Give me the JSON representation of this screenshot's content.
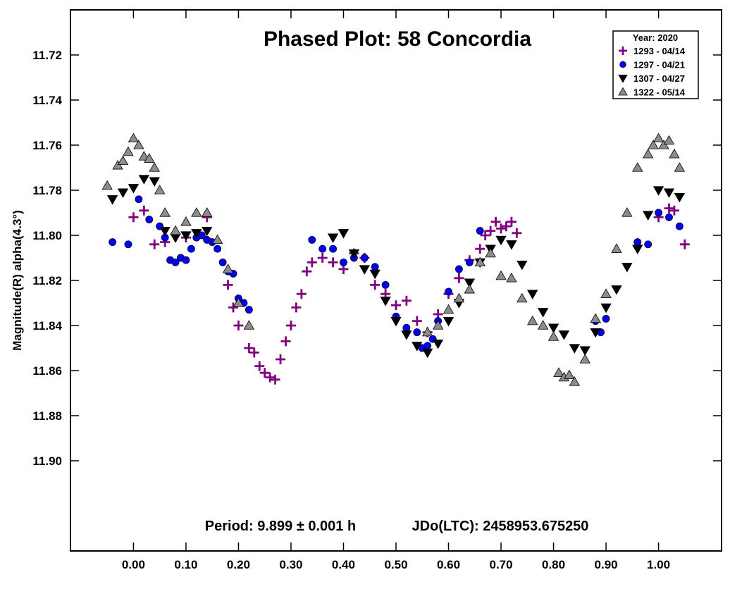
{
  "chart_data": {
    "type": "scatter",
    "title": "Phased Plot: 58 Concordia",
    "ylabel": "Magnitude(R) alpha(4.3°)",
    "xlabel": "",
    "xlim": [
      -0.12,
      1.12
    ],
    "ylim": [
      11.7,
      11.94
    ],
    "y_inverted": true,
    "x_ticks": [
      0.0,
      0.1,
      0.2,
      0.3,
      0.4,
      0.5,
      0.6,
      0.7,
      0.8,
      0.9,
      1.0
    ],
    "x_tick_labels": [
      "0.00",
      "0.10",
      "0.20",
      "0.30",
      "0.40",
      "0.50",
      "0.60",
      "0.70",
      "0.80",
      "0.90",
      "1.00"
    ],
    "y_ticks": [
      11.72,
      11.74,
      11.76,
      11.78,
      11.8,
      11.82,
      11.84,
      11.86,
      11.88,
      11.9
    ],
    "y_tick_labels": [
      "11.72",
      "11.74",
      "11.76",
      "11.78",
      "11.80",
      "11.82",
      "11.84",
      "11.86",
      "11.88",
      "11.90"
    ],
    "legend": {
      "title": "Year: 2020",
      "placement": "top-right"
    },
    "annotations": {
      "period": "Period: 9.899 ± 0.001 h",
      "jdo": "JDo(LTC): 2458953.675250"
    },
    "series": [
      {
        "name": "1293 - 04/14",
        "marker": "plus",
        "color": "#800080",
        "x": [
          0.0,
          0.02,
          0.04,
          0.06,
          0.1,
          0.14,
          0.18,
          0.19,
          0.2,
          0.22,
          0.23,
          0.24,
          0.25,
          0.26,
          0.27,
          0.28,
          0.29,
          0.3,
          0.31,
          0.32,
          0.33,
          0.34,
          0.36,
          0.38,
          0.4,
          0.42,
          0.44,
          0.46,
          0.48,
          0.5,
          0.52,
          0.54,
          0.56,
          0.58,
          0.6,
          0.62,
          0.64,
          0.66,
          0.67,
          0.68,
          0.69,
          0.7,
          0.71,
          0.72,
          0.73,
          1.0,
          1.02,
          1.03,
          1.05
        ],
        "y": [
          11.792,
          11.789,
          11.804,
          11.803,
          11.801,
          11.792,
          11.822,
          11.832,
          11.84,
          11.85,
          11.852,
          11.858,
          11.861,
          11.863,
          11.864,
          11.855,
          11.847,
          11.84,
          11.832,
          11.826,
          11.816,
          11.812,
          11.81,
          11.812,
          11.815,
          11.808,
          11.81,
          11.822,
          11.826,
          11.831,
          11.829,
          11.838,
          11.843,
          11.835,
          11.826,
          11.819,
          11.811,
          11.806,
          11.8,
          11.798,
          11.794,
          11.797,
          11.796,
          11.794,
          11.799,
          11.792,
          11.788,
          11.789,
          11.804
        ]
      },
      {
        "name": "1297 - 04/21",
        "marker": "circle",
        "color": "#0000ee",
        "x": [
          -0.04,
          -0.01,
          0.01,
          0.03,
          0.05,
          0.06,
          0.07,
          0.08,
          0.09,
          0.1,
          0.11,
          0.12,
          0.13,
          0.14,
          0.15,
          0.16,
          0.17,
          0.18,
          0.19,
          0.2,
          0.21,
          0.22,
          0.34,
          0.36,
          0.38,
          0.4,
          0.42,
          0.44,
          0.46,
          0.48,
          0.5,
          0.52,
          0.54,
          0.55,
          0.56,
          0.57,
          0.58,
          0.6,
          0.62,
          0.64,
          0.66,
          0.88,
          0.89,
          0.9,
          0.96,
          0.98,
          1.0,
          1.02,
          1.04
        ],
        "y": [
          11.803,
          11.804,
          11.784,
          11.793,
          11.796,
          11.801,
          11.811,
          11.812,
          11.81,
          11.811,
          11.806,
          11.801,
          11.8,
          11.802,
          11.803,
          11.806,
          11.812,
          11.816,
          11.817,
          11.828,
          11.83,
          11.833,
          11.802,
          11.806,
          11.806,
          11.812,
          11.81,
          11.81,
          11.814,
          11.822,
          11.836,
          11.841,
          11.843,
          11.85,
          11.849,
          11.846,
          11.838,
          11.825,
          11.815,
          11.812,
          11.798,
          11.838,
          11.843,
          11.837,
          11.803,
          11.804,
          11.79,
          11.792,
          11.796
        ]
      },
      {
        "name": "1307 - 04/27",
        "marker": "triangle-down",
        "color": "#000000",
        "x": [
          -0.04,
          -0.02,
          0.0,
          0.02,
          0.04,
          0.06,
          0.08,
          0.1,
          0.12,
          0.14,
          0.38,
          0.4,
          0.42,
          0.44,
          0.46,
          0.48,
          0.5,
          0.52,
          0.54,
          0.56,
          0.58,
          0.6,
          0.62,
          0.64,
          0.66,
          0.68,
          0.7,
          0.72,
          0.74,
          0.76,
          0.78,
          0.8,
          0.82,
          0.84,
          0.86,
          0.88,
          0.9,
          0.92,
          0.94,
          0.96,
          0.98,
          1.0,
          1.02,
          1.04
        ],
        "y": [
          11.784,
          11.781,
          11.779,
          11.775,
          11.776,
          11.798,
          11.801,
          11.8,
          11.799,
          11.798,
          11.801,
          11.799,
          11.808,
          11.815,
          11.817,
          11.829,
          11.838,
          11.844,
          11.849,
          11.852,
          11.848,
          11.838,
          11.83,
          11.821,
          11.812,
          11.806,
          11.802,
          11.804,
          11.813,
          11.826,
          11.834,
          11.841,
          11.844,
          11.85,
          11.851,
          11.843,
          11.832,
          11.824,
          11.814,
          11.806,
          11.791,
          11.78,
          11.781,
          11.783
        ]
      },
      {
        "name": "1322 - 05/14",
        "marker": "triangle-up",
        "color": "#8c8c8c",
        "x": [
          -0.05,
          -0.03,
          -0.02,
          -0.01,
          0.0,
          0.01,
          0.02,
          0.03,
          0.04,
          0.05,
          0.06,
          0.08,
          0.1,
          0.12,
          0.14,
          0.16,
          0.18,
          0.2,
          0.22,
          0.56,
          0.58,
          0.6,
          0.62,
          0.64,
          0.66,
          0.68,
          0.7,
          0.72,
          0.74,
          0.76,
          0.78,
          0.8,
          0.81,
          0.82,
          0.83,
          0.84,
          0.86,
          0.88,
          0.9,
          0.92,
          0.94,
          0.96,
          0.98,
          0.99,
          1.0,
          1.01,
          1.02,
          1.03,
          1.04
        ],
        "y": [
          11.778,
          11.769,
          11.767,
          11.763,
          11.757,
          11.76,
          11.765,
          11.766,
          11.77,
          11.78,
          11.79,
          11.798,
          11.794,
          11.79,
          11.79,
          11.802,
          11.815,
          11.83,
          11.84,
          11.843,
          11.84,
          11.833,
          11.828,
          11.824,
          11.812,
          11.808,
          11.818,
          11.819,
          11.828,
          11.838,
          11.84,
          11.845,
          11.861,
          11.863,
          11.862,
          11.865,
          11.855,
          11.837,
          11.826,
          11.806,
          11.79,
          11.77,
          11.764,
          11.76,
          11.757,
          11.76,
          11.758,
          11.764,
          11.77
        ]
      }
    ]
  }
}
